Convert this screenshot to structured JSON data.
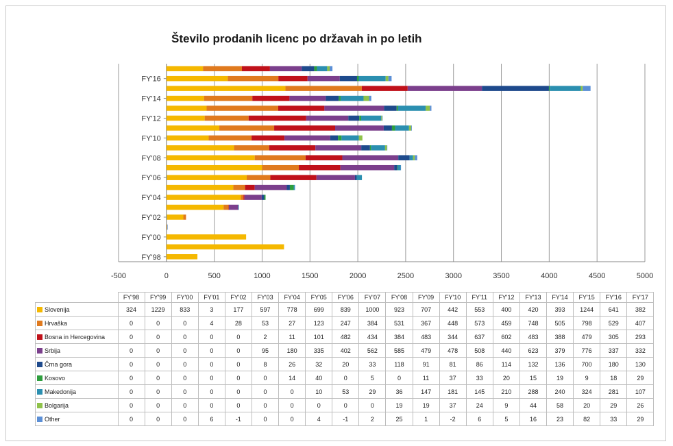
{
  "chart_data": {
    "type": "bar",
    "orientation": "horizontal",
    "stacked": true,
    "title": "Število prodanih licenc po državah in po letih",
    "xlim": [
      -500,
      5000
    ],
    "x_ticks": [
      "-500",
      "0",
      "500",
      "1000",
      "1500",
      "2000",
      "2500",
      "3000",
      "3500",
      "4000",
      "4500",
      "5000"
    ],
    "y_tick_labels": [
      "FY'98",
      "FY'00",
      "FY'02",
      "FY'04",
      "FY'06",
      "FY'08",
      "FY'10",
      "FY'12",
      "FY'14",
      "FY'16"
    ],
    "categories": [
      "FY'98",
      "FY'99",
      "FY'00",
      "FY'01",
      "FY'02",
      "FY'03",
      "FY'04",
      "FY'05",
      "FY'06",
      "FY'07",
      "FY'08",
      "FY'09",
      "FY'10",
      "FY'11",
      "FY'12",
      "FY'13",
      "FY'14",
      "FY'15",
      "FY'16",
      "FY'17"
    ],
    "grid": "vertical",
    "series": [
      {
        "name": "Slovenija",
        "color": "#f5b800",
        "values": [
          324,
          1229,
          833,
          3,
          177,
          597,
          778,
          699,
          839,
          1000,
          923,
          707,
          442,
          553,
          400,
          420,
          393,
          1244,
          641,
          382
        ]
      },
      {
        "name": "Hrvaška",
        "color": "#e07a1e",
        "values": [
          0,
          0,
          0,
          4,
          28,
          53,
          27,
          123,
          247,
          384,
          531,
          367,
          448,
          573,
          459,
          748,
          505,
          798,
          529,
          407
        ]
      },
      {
        "name": "Bosna in Hercegovina",
        "color": "#c0111a",
        "values": [
          0,
          0,
          0,
          0,
          0,
          2,
          11,
          101,
          482,
          434,
          384,
          483,
          344,
          637,
          602,
          483,
          388,
          479,
          305,
          293
        ]
      },
      {
        "name": "Srbija",
        "color": "#7b3f8c",
        "values": [
          0,
          0,
          0,
          0,
          0,
          95,
          180,
          335,
          402,
          562,
          585,
          479,
          478,
          508,
          440,
          623,
          379,
          776,
          337,
          332
        ]
      },
      {
        "name": "Črna gora",
        "color": "#1e4a8c",
        "values": [
          0,
          0,
          0,
          0,
          0,
          8,
          26,
          32,
          20,
          33,
          118,
          91,
          81,
          86,
          114,
          132,
          136,
          700,
          180,
          130
        ]
      },
      {
        "name": "Kosovo",
        "color": "#2e9e3e",
        "values": [
          0,
          0,
          0,
          0,
          0,
          0,
          14,
          40,
          0,
          5,
          0,
          11,
          37,
          33,
          20,
          15,
          19,
          9,
          18,
          29
        ]
      },
      {
        "name": "Makedonija",
        "color": "#2b8fb0",
        "values": [
          0,
          0,
          0,
          0,
          0,
          0,
          0,
          10,
          53,
          29,
          36,
          147,
          181,
          145,
          210,
          288,
          240,
          324,
          281,
          107
        ]
      },
      {
        "name": "Bolgarija",
        "color": "#8fc24a",
        "values": [
          0,
          0,
          0,
          0,
          0,
          0,
          0,
          0,
          0,
          0,
          19,
          19,
          37,
          24,
          9,
          44,
          58,
          20,
          29,
          26
        ]
      },
      {
        "name": "Other",
        "color": "#5b8fd6",
        "values": [
          0,
          0,
          0,
          6,
          -1,
          0,
          0,
          4,
          -1,
          2,
          25,
          1,
          -2,
          6,
          5,
          16,
          23,
          82,
          33,
          29
        ]
      }
    ]
  }
}
